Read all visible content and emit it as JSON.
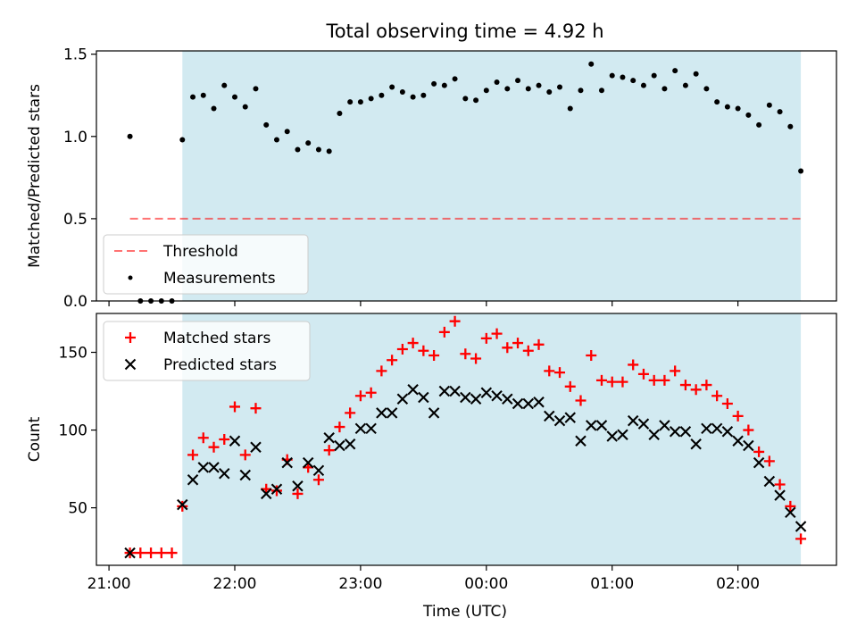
{
  "title": "Total observing time = 4.92 h",
  "xlabel": "Time (UTC)",
  "x_tick_labels": [
    "21:00",
    "22:00",
    "23:00",
    "00:00",
    "01:00",
    "02:00"
  ],
  "chart_data": [
    {
      "type": "scatter",
      "title": "Total observing time = 4.92 h",
      "ylabel": "Matched/Predicted stars",
      "ylim": [
        0,
        1.52
      ],
      "yticks": [
        "0.0",
        "0.5",
        "1.0",
        "1.5"
      ],
      "x_unit": "time (UTC); 21:00 to 02:47",
      "xlim": [
        "20:54",
        "02:47"
      ],
      "grid": false,
      "legend_position": "lower-left",
      "shaded_region": {
        "x_start": "21:35",
        "x_end": "02:30",
        "color": "#add8e6"
      },
      "threshold": {
        "name": "Threshold",
        "value": 0.5,
        "x_start": "21:10",
        "x_end": "02:30",
        "color": "#ff0000",
        "style": "dashed"
      },
      "series": [
        {
          "name": "Measurements",
          "color": "#000000",
          "marker": "dot",
          "points": [
            [
              "21:10",
              1.0
            ],
            [
              "21:15",
              0.0
            ],
            [
              "21:20",
              0.0
            ],
            [
              "21:25",
              0.0
            ],
            [
              "21:30",
              0.0
            ],
            [
              "21:35",
              0.98
            ],
            [
              "21:40",
              1.24
            ],
            [
              "21:45",
              1.25
            ],
            [
              "21:50",
              1.17
            ],
            [
              "21:55",
              1.31
            ],
            [
              "22:00",
              1.24
            ],
            [
              "22:05",
              1.18
            ],
            [
              "22:10",
              1.29
            ],
            [
              "22:15",
              1.07
            ],
            [
              "22:20",
              0.98
            ],
            [
              "22:25",
              1.03
            ],
            [
              "22:30",
              0.92
            ],
            [
              "22:35",
              0.96
            ],
            [
              "22:40",
              0.92
            ],
            [
              "22:45",
              0.91
            ],
            [
              "22:50",
              1.14
            ],
            [
              "22:55",
              1.21
            ],
            [
              "23:00",
              1.21
            ],
            [
              "23:05",
              1.23
            ],
            [
              "23:10",
              1.25
            ],
            [
              "23:15",
              1.3
            ],
            [
              "23:20",
              1.27
            ],
            [
              "23:25",
              1.24
            ],
            [
              "23:30",
              1.25
            ],
            [
              "23:35",
              1.32
            ],
            [
              "23:40",
              1.31
            ],
            [
              "23:45",
              1.35
            ],
            [
              "23:50",
              1.23
            ],
            [
              "23:55",
              1.22
            ],
            [
              "00:00",
              1.28
            ],
            [
              "00:05",
              1.33
            ],
            [
              "00:10",
              1.29
            ],
            [
              "00:15",
              1.34
            ],
            [
              "00:20",
              1.29
            ],
            [
              "00:25",
              1.31
            ],
            [
              "00:30",
              1.27
            ],
            [
              "00:35",
              1.3
            ],
            [
              "00:40",
              1.17
            ],
            [
              "00:45",
              1.28
            ],
            [
              "00:50",
              1.44
            ],
            [
              "00:55",
              1.28
            ],
            [
              "01:00",
              1.37
            ],
            [
              "01:05",
              1.36
            ],
            [
              "01:10",
              1.34
            ],
            [
              "01:15",
              1.31
            ],
            [
              "01:20",
              1.37
            ],
            [
              "01:25",
              1.29
            ],
            [
              "01:30",
              1.4
            ],
            [
              "01:35",
              1.31
            ],
            [
              "01:40",
              1.38
            ],
            [
              "01:45",
              1.29
            ],
            [
              "01:50",
              1.21
            ],
            [
              "01:55",
              1.18
            ],
            [
              "02:00",
              1.17
            ],
            [
              "02:05",
              1.13
            ],
            [
              "02:10",
              1.07
            ],
            [
              "02:15",
              1.19
            ],
            [
              "02:20",
              1.15
            ],
            [
              "02:25",
              1.06
            ],
            [
              "02:30",
              0.79
            ]
          ]
        }
      ],
      "legend": [
        "Threshold",
        "Measurements"
      ]
    },
    {
      "type": "scatter",
      "ylabel": "Count",
      "ylim": [
        13,
        175
      ],
      "yticks": [
        "50",
        "100",
        "150"
      ],
      "x_unit": "time (UTC); 21:00 to 02:47",
      "xlim": [
        "20:54",
        "02:47"
      ],
      "grid": false,
      "legend_position": "upper-left",
      "shaded_region": {
        "x_start": "21:35",
        "x_end": "02:30",
        "color": "#add8e6"
      },
      "series": [
        {
          "name": "Matched stars",
          "color": "#ff0000",
          "marker": "plus",
          "points": [
            [
              "21:10",
              21
            ],
            [
              "21:15",
              21
            ],
            [
              "21:20",
              21
            ],
            [
              "21:25",
              21
            ],
            [
              "21:30",
              21
            ],
            [
              "21:35",
              51
            ],
            [
              "21:40",
              84
            ],
            [
              "21:45",
              95
            ],
            [
              "21:50",
              89
            ],
            [
              "21:55",
              94
            ],
            [
              "22:00",
              115
            ],
            [
              "22:05",
              84
            ],
            [
              "22:10",
              114
            ],
            [
              "22:15",
              62
            ],
            [
              "22:20",
              61
            ],
            [
              "22:25",
              81
            ],
            [
              "22:30",
              59
            ],
            [
              "22:35",
              76
            ],
            [
              "22:40",
              68
            ],
            [
              "22:45",
              87
            ],
            [
              "22:50",
              102
            ],
            [
              "22:55",
              111
            ],
            [
              "23:00",
              122
            ],
            [
              "23:05",
              124
            ],
            [
              "23:10",
              138
            ],
            [
              "23:15",
              145
            ],
            [
              "23:20",
              152
            ],
            [
              "23:25",
              156
            ],
            [
              "23:30",
              151
            ],
            [
              "23:35",
              148
            ],
            [
              "23:40",
              163
            ],
            [
              "23:45",
              170
            ],
            [
              "23:50",
              149
            ],
            [
              "23:55",
              146
            ],
            [
              "00:00",
              159
            ],
            [
              "00:05",
              162
            ],
            [
              "00:10",
              153
            ],
            [
              "00:15",
              156
            ],
            [
              "00:20",
              151
            ],
            [
              "00:25",
              155
            ],
            [
              "00:30",
              138
            ],
            [
              "00:35",
              137
            ],
            [
              "00:40",
              128
            ],
            [
              "00:45",
              119
            ],
            [
              "00:50",
              148
            ],
            [
              "00:55",
              132
            ],
            [
              "01:00",
              131
            ],
            [
              "01:05",
              131
            ],
            [
              "01:10",
              142
            ],
            [
              "01:15",
              136
            ],
            [
              "01:20",
              132
            ],
            [
              "01:25",
              132
            ],
            [
              "01:30",
              138
            ],
            [
              "01:35",
              129
            ],
            [
              "01:40",
              126
            ],
            [
              "01:45",
              129
            ],
            [
              "01:50",
              122
            ],
            [
              "01:55",
              117
            ],
            [
              "02:00",
              109
            ],
            [
              "02:05",
              100
            ],
            [
              "02:10",
              86
            ],
            [
              "02:15",
              80
            ],
            [
              "02:20",
              65
            ],
            [
              "02:25",
              51
            ],
            [
              "02:30",
              30
            ]
          ]
        },
        {
          "name": "Predicted stars",
          "color": "#000000",
          "marker": "x",
          "points": [
            [
              "21:10",
              21
            ],
            [
              "21:35",
              52
            ],
            [
              "21:40",
              68
            ],
            [
              "21:45",
              76
            ],
            [
              "21:50",
              76
            ],
            [
              "21:55",
              72
            ],
            [
              "22:00",
              93
            ],
            [
              "22:05",
              71
            ],
            [
              "22:10",
              89
            ],
            [
              "22:15",
              59
            ],
            [
              "22:20",
              62
            ],
            [
              "22:25",
              79
            ],
            [
              "22:30",
              64
            ],
            [
              "22:35",
              79
            ],
            [
              "22:40",
              74
            ],
            [
              "22:45",
              95
            ],
            [
              "22:50",
              90
            ],
            [
              "22:55",
              91
            ],
            [
              "23:00",
              101
            ],
            [
              "23:05",
              101
            ],
            [
              "23:10",
              111
            ],
            [
              "23:15",
              111
            ],
            [
              "23:20",
              120
            ],
            [
              "23:25",
              126
            ],
            [
              "23:30",
              121
            ],
            [
              "23:35",
              111
            ],
            [
              "23:40",
              125
            ],
            [
              "23:45",
              125
            ],
            [
              "23:50",
              121
            ],
            [
              "23:55",
              120
            ],
            [
              "00:00",
              124
            ],
            [
              "00:05",
              122
            ],
            [
              "00:10",
              120
            ],
            [
              "00:15",
              117
            ],
            [
              "00:20",
              117
            ],
            [
              "00:25",
              118
            ],
            [
              "00:30",
              109
            ],
            [
              "00:35",
              106
            ],
            [
              "00:40",
              108
            ],
            [
              "00:45",
              93
            ],
            [
              "00:50",
              103
            ],
            [
              "00:55",
              103
            ],
            [
              "01:00",
              96
            ],
            [
              "01:05",
              97
            ],
            [
              "01:10",
              106
            ],
            [
              "01:15",
              104
            ],
            [
              "01:20",
              97
            ],
            [
              "01:25",
              103
            ],
            [
              "01:30",
              99
            ],
            [
              "01:35",
              99
            ],
            [
              "01:40",
              91
            ],
            [
              "01:45",
              101
            ],
            [
              "01:50",
              101
            ],
            [
              "01:55",
              99
            ],
            [
              "02:00",
              93
            ],
            [
              "02:05",
              90
            ],
            [
              "02:10",
              79
            ],
            [
              "02:15",
              67
            ],
            [
              "02:20",
              58
            ],
            [
              "02:25",
              47
            ],
            [
              "02:30",
              38
            ]
          ]
        }
      ],
      "legend": [
        "Matched stars",
        "Predicted stars"
      ]
    }
  ]
}
